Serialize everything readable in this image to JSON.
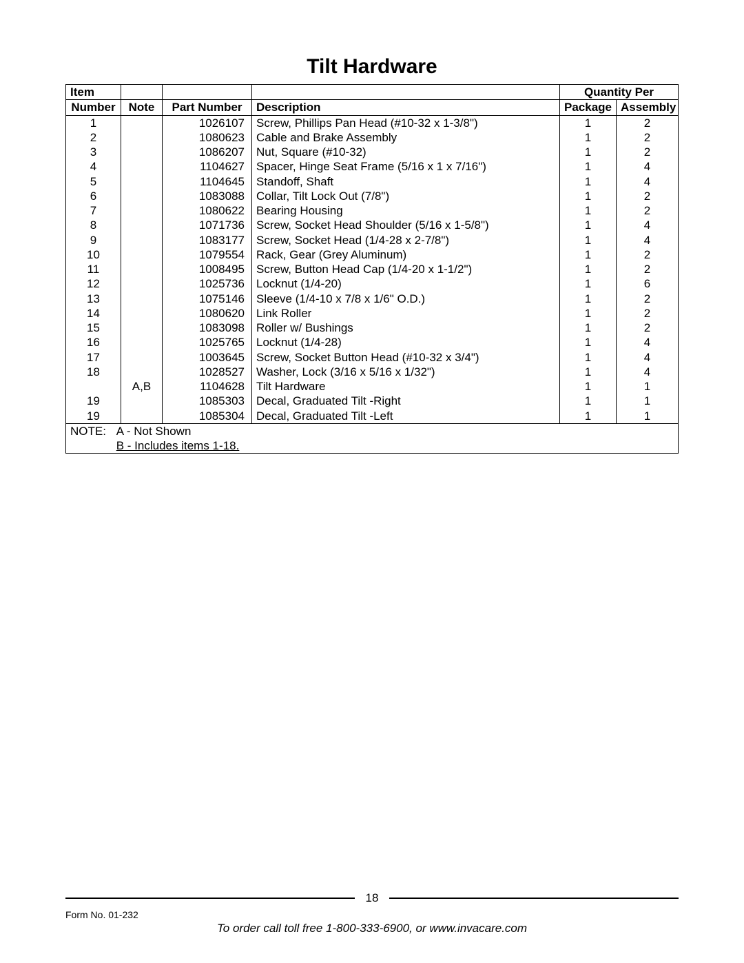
{
  "title": "Tilt Hardware",
  "headers": {
    "item_top": "Item",
    "item": "Number",
    "note": "Note",
    "part": "Part Number",
    "description": "Description",
    "qty_group": "Quantity Per",
    "package": "Package",
    "assembly": "Assembly"
  },
  "rows": [
    {
      "item": "1",
      "note": "",
      "part": "1026107",
      "desc": "Screw, Phillips Pan Head (#10-32 x 1-3/8\")",
      "pkg": "1",
      "asm": "2"
    },
    {
      "item": "2",
      "note": "",
      "part": "1080623",
      "desc": "Cable and Brake Assembly",
      "pkg": "1",
      "asm": "2"
    },
    {
      "item": "3",
      "note": "",
      "part": "1086207",
      "desc": "Nut, Square (#10-32)",
      "pkg": "1",
      "asm": "2"
    },
    {
      "item": "4",
      "note": "",
      "part": "1104627",
      "desc": "Spacer, Hinge Seat Frame (5/16 x 1 x 7/16\")",
      "pkg": "1",
      "asm": "4"
    },
    {
      "item": "5",
      "note": "",
      "part": "1104645",
      "desc": "Standoff, Shaft",
      "pkg": "1",
      "asm": "4"
    },
    {
      "item": "6",
      "note": "",
      "part": "1083088",
      "desc": "Collar, Tilt Lock Out (7/8\")",
      "pkg": "1",
      "asm": "2"
    },
    {
      "item": "7",
      "note": "",
      "part": "1080622",
      "desc": "Bearing Housing",
      "pkg": "1",
      "asm": "2"
    },
    {
      "item": "8",
      "note": "",
      "part": "1071736",
      "desc": "Screw, Socket Head Shoulder (5/16 x 1-5/8\")",
      "pkg": "1",
      "asm": "4"
    },
    {
      "item": "9",
      "note": "",
      "part": "1083177",
      "desc": "Screw, Socket Head (1/4-28 x 2-7/8\")",
      "pkg": "1",
      "asm": "4"
    },
    {
      "item": "10",
      "note": "",
      "part": "1079554",
      "desc": "Rack, Gear (Grey Aluminum)",
      "pkg": "1",
      "asm": "2"
    },
    {
      "item": "11",
      "note": "",
      "part": "1008495",
      "desc": "Screw, Button Head Cap (1/4-20 x 1-1/2\")",
      "pkg": "1",
      "asm": "2"
    },
    {
      "item": "12",
      "note": "",
      "part": "1025736",
      "desc": "Locknut (1/4-20)",
      "pkg": "1",
      "asm": "6"
    },
    {
      "item": "13",
      "note": "",
      "part": "1075146",
      "desc": "Sleeve (1/4-10 x 7/8 x 1/6\" O.D.)",
      "pkg": "1",
      "asm": "2"
    },
    {
      "item": "14",
      "note": "",
      "part": "1080620",
      "desc": "Link Roller",
      "pkg": "1",
      "asm": "2"
    },
    {
      "item": "15",
      "note": "",
      "part": "1083098",
      "desc": "Roller w/ Bushings",
      "pkg": "1",
      "asm": "2"
    },
    {
      "item": "16",
      "note": "",
      "part": "1025765",
      "desc": "Locknut (1/4-28)",
      "pkg": "1",
      "asm": "4"
    },
    {
      "item": "17",
      "note": "",
      "part": "1003645",
      "desc": "Screw, Socket Button Head (#10-32 x 3/4\")",
      "pkg": "1",
      "asm": "4"
    },
    {
      "item": "18",
      "note": "",
      "part": "1028527",
      "desc": "Washer, Lock (3/16 x 5/16 x 1/32\")",
      "pkg": "1",
      "asm": "4"
    },
    {
      "item": "",
      "note": "A,B",
      "part": "1104628",
      "desc": "Tilt Hardware",
      "pkg": "1",
      "asm": "1"
    },
    {
      "item": "19",
      "note": "",
      "part": "1085303",
      "desc": "Decal, Graduated Tilt -Right",
      "pkg": "1",
      "asm": "1"
    },
    {
      "item": "19",
      "note": "",
      "part": "1085304",
      "desc": "Decal, Graduated Tilt -Left",
      "pkg": "1",
      "asm": "1"
    }
  ],
  "notes": {
    "label": "NOTE:",
    "a": "A - Not Shown",
    "b": "B - Includes items 1-18."
  },
  "footer": {
    "page_number": "18",
    "form_no": "Form No. 01-232",
    "order_line": "To order call toll free 1-800-333-6900, or www.invacare.com"
  }
}
